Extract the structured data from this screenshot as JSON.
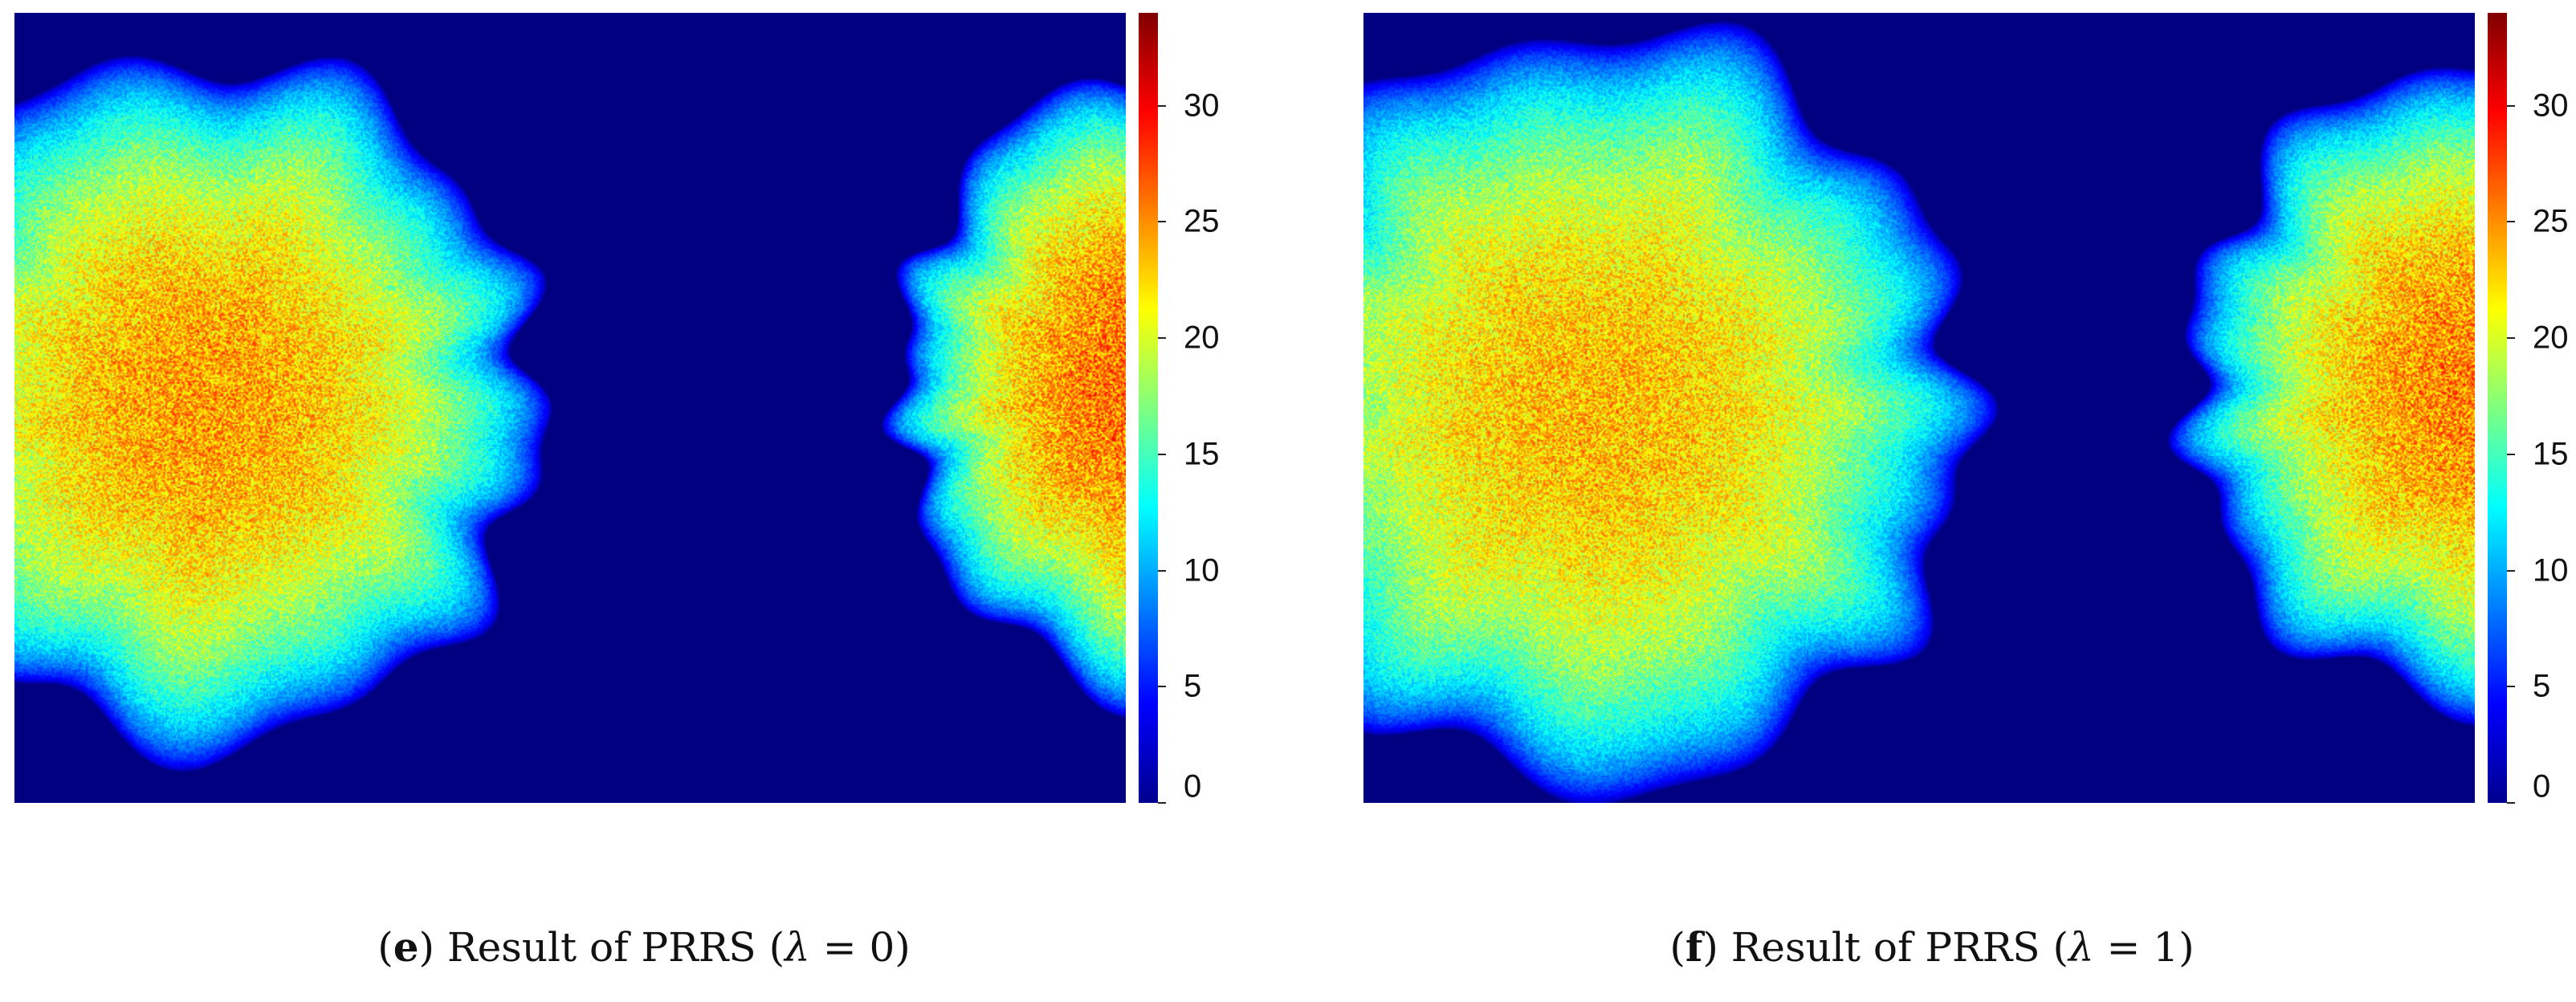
{
  "chart_data": [
    {
      "type": "heatmap",
      "caption": {
        "letter": "e",
        "prefix": "Result of PRRS (",
        "symbol": "λ",
        "suffix": " = 0)"
      },
      "colorbar": {
        "min": 0,
        "max": 34,
        "ticks": [
          "0",
          "5",
          "10",
          "15",
          "20",
          "25",
          "30"
        ]
      },
      "colormap": [
        "#00008f",
        "#0000ff",
        "#00ffff",
        "#ffff00",
        "#ff0000",
        "#800000"
      ],
      "background_value": 0,
      "blobs": [
        {
          "cx": 0.17,
          "cy": 0.49,
          "rx": 0.27,
          "ry": 0.39,
          "peak": 27
        },
        {
          "cx": 1.02,
          "cy": 0.47,
          "rx": 0.2,
          "ry": 0.35,
          "peak": 29
        }
      ]
    },
    {
      "type": "heatmap",
      "caption": {
        "letter": "f",
        "prefix": "Result of PRRS (",
        "symbol": "λ",
        "suffix": " = 1)"
      },
      "colorbar": {
        "min": 0,
        "max": 34,
        "ticks": [
          "0",
          "5",
          "10",
          "15",
          "20",
          "25",
          "30"
        ]
      },
      "colormap": [
        "#00008f",
        "#0000ff",
        "#00ffff",
        "#ffff00",
        "#ff0000",
        "#800000"
      ],
      "background_value": 0,
      "blobs": [
        {
          "cx": 0.21,
          "cy": 0.5,
          "rx": 0.3,
          "ry": 0.43,
          "peak": 26
        },
        {
          "cx": 1.01,
          "cy": 0.47,
          "rx": 0.24,
          "ry": 0.37,
          "peak": 28
        }
      ]
    }
  ]
}
